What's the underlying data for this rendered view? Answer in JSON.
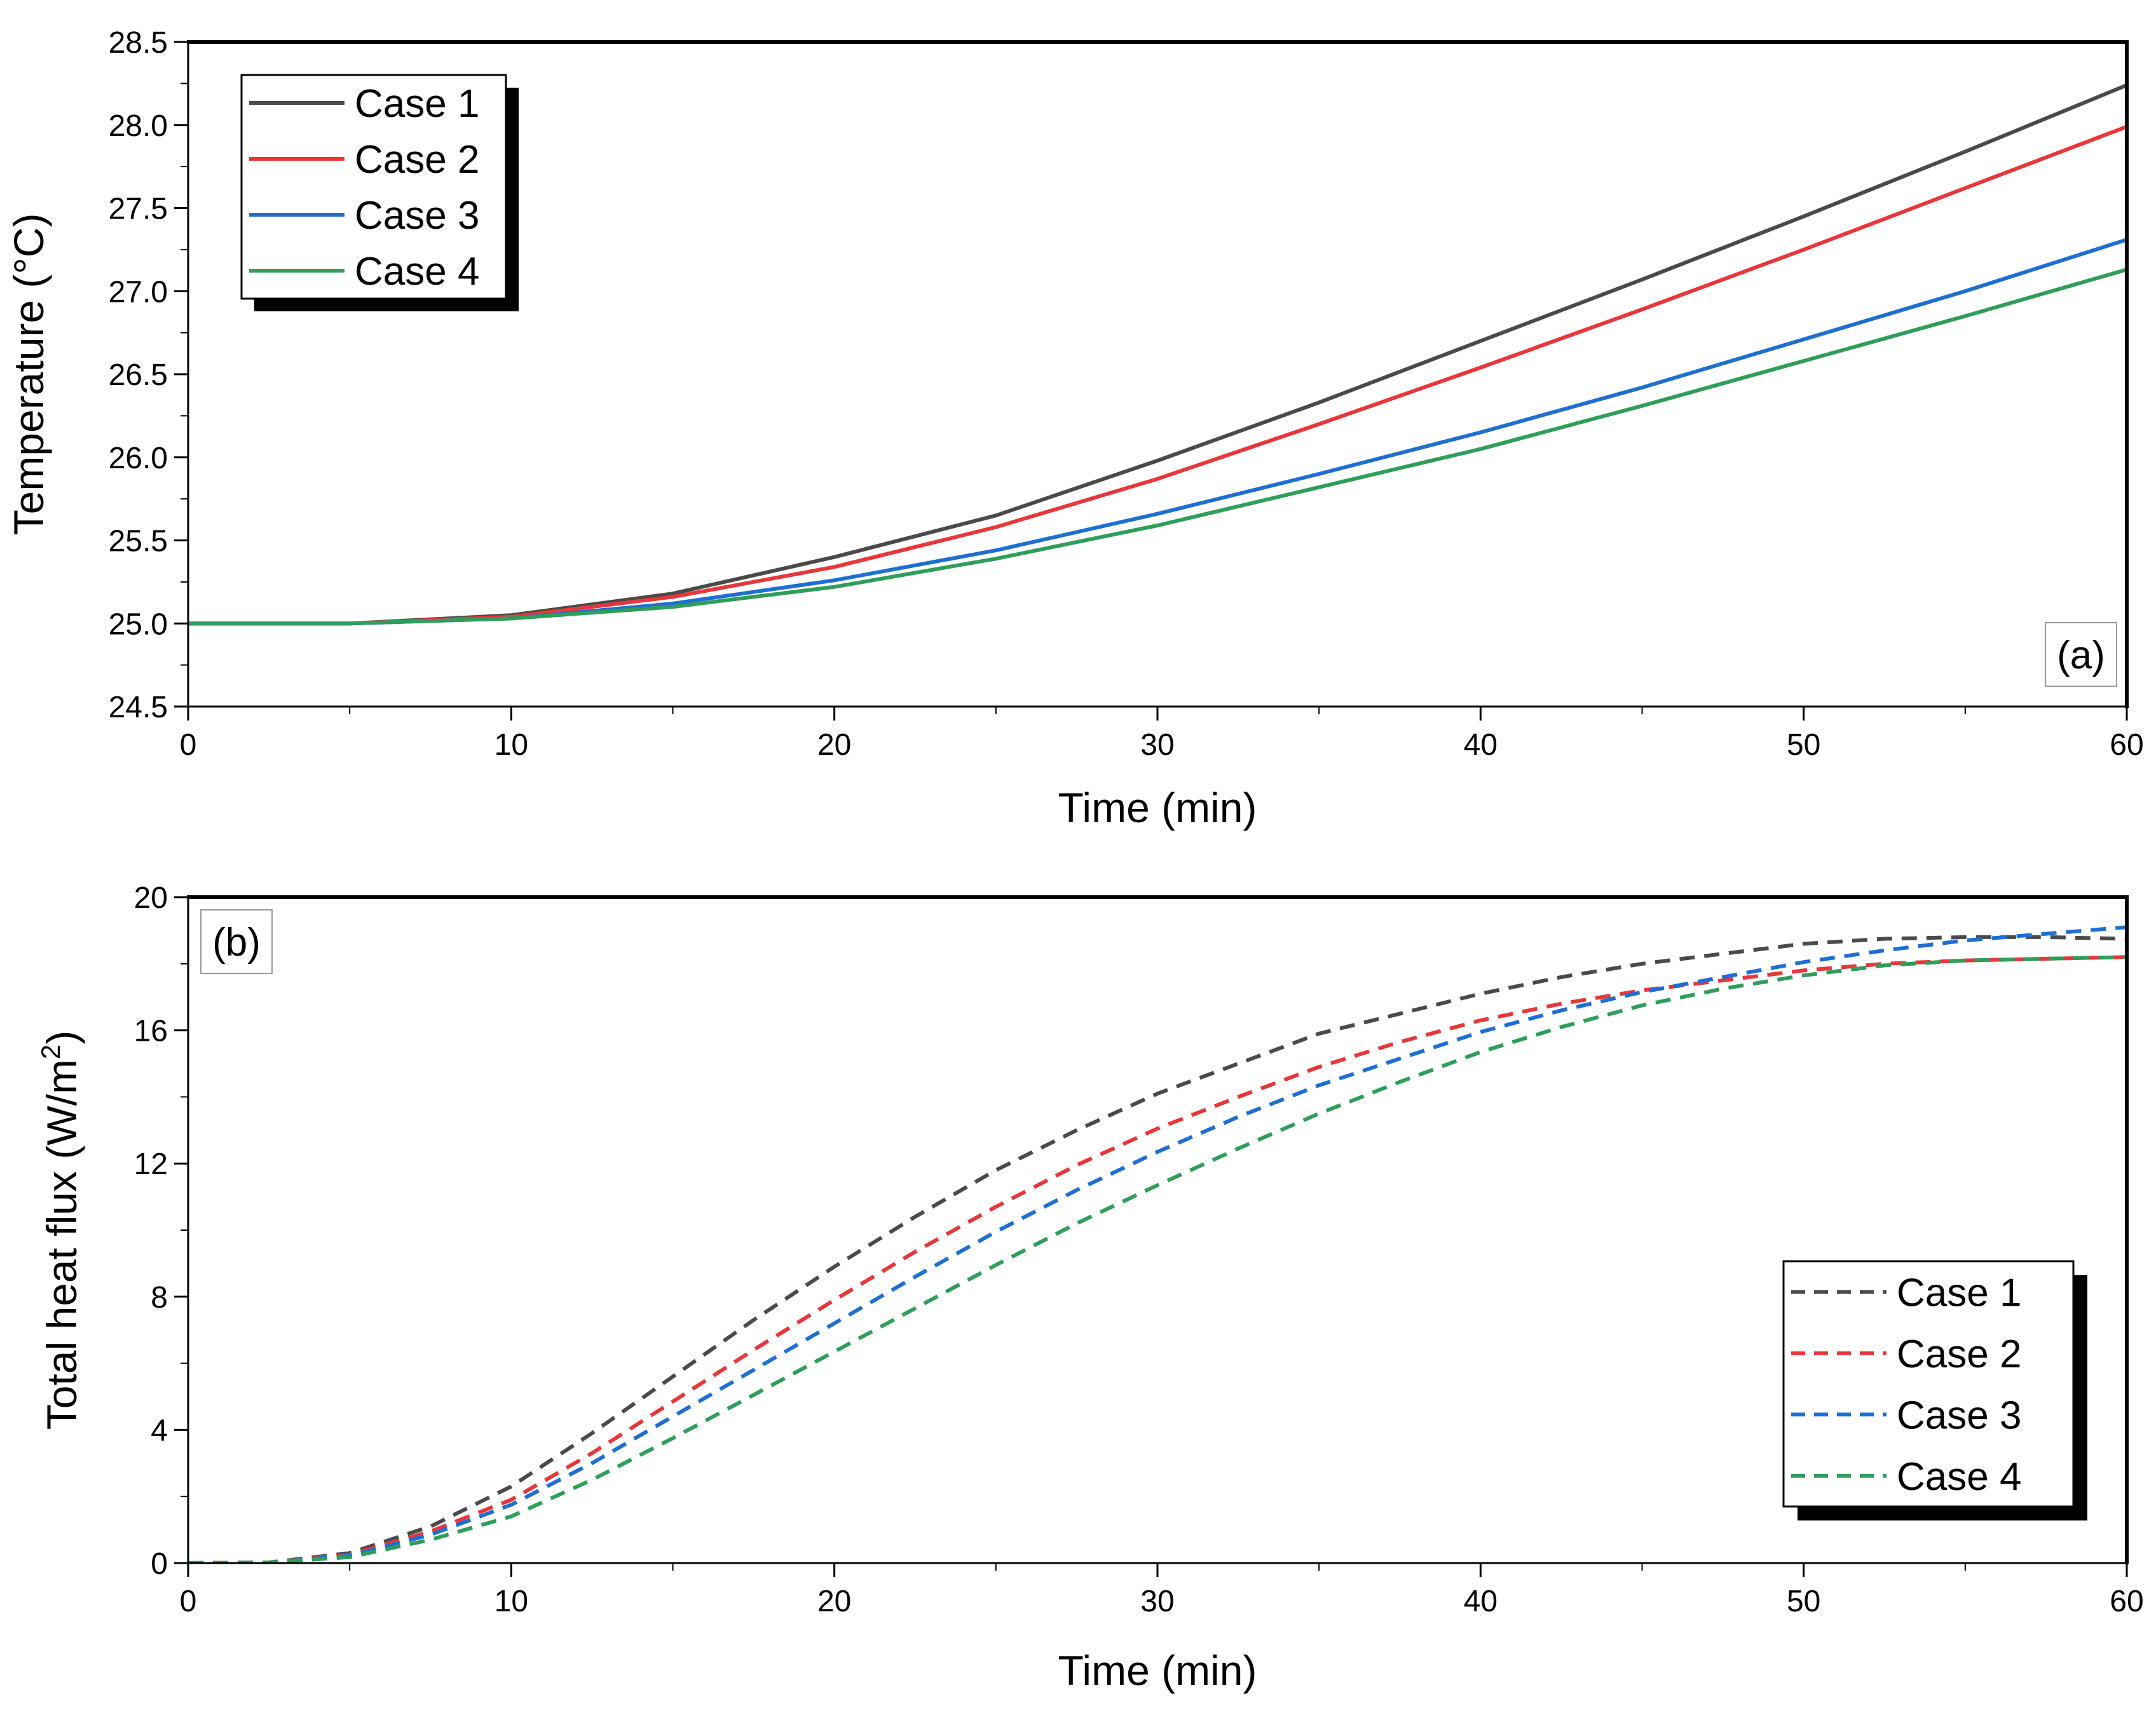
{
  "chart_data": [
    {
      "type": "line",
      "panel_label": "(a)",
      "xlabel": "Time (min)",
      "ylabel": "Temperature (°C)",
      "xlim": [
        0,
        60
      ],
      "ylim": [
        24.5,
        28.5
      ],
      "xticks": [
        0,
        10,
        20,
        30,
        40,
        50,
        60
      ],
      "xtick_labels": [
        "0",
        "10",
        "20",
        "30",
        "40",
        "50",
        "60"
      ],
      "yticks": [
        24.5,
        25.0,
        25.5,
        26.0,
        26.5,
        27.0,
        27.5,
        28.0,
        28.5
      ],
      "ytick_labels": [
        "24.5",
        "25.0",
        "25.5",
        "26.0",
        "26.5",
        "27.0",
        "27.5",
        "28.0",
        "28.5"
      ],
      "grid": false,
      "legend_position": "top-left",
      "line_style": "solid",
      "x": [
        0,
        5,
        10,
        15,
        20,
        25,
        30,
        35,
        40,
        45,
        50,
        55,
        60
      ],
      "series": [
        {
          "name": "Case 1",
          "color": "#4a4a4a",
          "values": [
            25.0,
            25.0,
            25.05,
            25.18,
            25.4,
            25.65,
            25.98,
            26.33,
            26.7,
            27.07,
            27.45,
            27.84,
            28.24
          ]
        },
        {
          "name": "Case 2",
          "color": "#e8373a",
          "values": [
            25.0,
            25.0,
            25.04,
            25.16,
            25.34,
            25.58,
            25.87,
            26.2,
            26.54,
            26.89,
            27.25,
            27.62,
            27.99
          ]
        },
        {
          "name": "Case 3",
          "color": "#1f6fd1",
          "values": [
            25.0,
            25.0,
            25.03,
            25.12,
            25.26,
            25.44,
            25.66,
            25.9,
            26.15,
            26.42,
            26.71,
            27.0,
            27.31
          ]
        },
        {
          "name": "Case 4",
          "color": "#2f9e5a",
          "values": [
            25.0,
            25.0,
            25.03,
            25.1,
            25.22,
            25.39,
            25.59,
            25.82,
            26.05,
            26.31,
            26.58,
            26.85,
            27.13
          ]
        }
      ]
    },
    {
      "type": "line",
      "panel_label": "(b)",
      "xlabel": "Time (min)",
      "ylabel": "Total heat flux (W/m",
      "ylabel_sup": "2",
      "ylabel_close": ")",
      "xlim": [
        0,
        60
      ],
      "ylim": [
        0,
        20
      ],
      "xticks": [
        0,
        10,
        20,
        30,
        40,
        50,
        60
      ],
      "xtick_labels": [
        "0",
        "10",
        "20",
        "30",
        "40",
        "50",
        "60"
      ],
      "yticks": [
        0,
        4,
        8,
        12,
        16,
        20
      ],
      "ytick_labels": [
        "0",
        "4",
        "8",
        "12",
        "16",
        "20"
      ],
      "grid": false,
      "legend_position": "bottom-right",
      "line_style": "dashed",
      "x": [
        0,
        2.5,
        5,
        7.5,
        10,
        12.5,
        15,
        17.5,
        20,
        22.5,
        25,
        27.5,
        30,
        32.5,
        35,
        37.5,
        40,
        42.5,
        45,
        47.5,
        50,
        52.5,
        55,
        57.5,
        60
      ],
      "series": [
        {
          "name": "Case 1",
          "color": "#4a4a4a",
          "values": [
            0,
            0.02,
            0.3,
            1.1,
            2.3,
            3.9,
            5.6,
            7.3,
            8.9,
            10.4,
            11.8,
            13.0,
            14.1,
            15.0,
            15.9,
            16.5,
            17.1,
            17.6,
            18.0,
            18.3,
            18.6,
            18.75,
            18.8,
            18.8,
            18.75
          ]
        },
        {
          "name": "Case 2",
          "color": "#e8373a",
          "values": [
            0,
            0.02,
            0.25,
            0.95,
            1.9,
            3.3,
            4.85,
            6.4,
            7.9,
            9.35,
            10.7,
            11.95,
            13.05,
            14.0,
            14.9,
            15.65,
            16.3,
            16.8,
            17.2,
            17.5,
            17.8,
            18.0,
            18.1,
            18.15,
            18.2
          ]
        },
        {
          "name": "Case 3",
          "color": "#1f6fd1",
          "values": [
            0,
            0.02,
            0.22,
            0.85,
            1.75,
            3.0,
            4.4,
            5.8,
            7.2,
            8.6,
            9.95,
            11.2,
            12.35,
            13.4,
            14.35,
            15.15,
            15.95,
            16.6,
            17.15,
            17.6,
            18.05,
            18.4,
            18.7,
            18.9,
            19.1
          ]
        },
        {
          "name": "Case 4",
          "color": "#2f9e5a",
          "values": [
            0,
            0.02,
            0.18,
            0.7,
            1.4,
            2.5,
            3.75,
            5.05,
            6.35,
            7.65,
            8.95,
            10.2,
            11.35,
            12.45,
            13.5,
            14.45,
            15.35,
            16.1,
            16.75,
            17.25,
            17.65,
            17.95,
            18.1,
            18.15,
            18.2
          ]
        }
      ]
    }
  ]
}
